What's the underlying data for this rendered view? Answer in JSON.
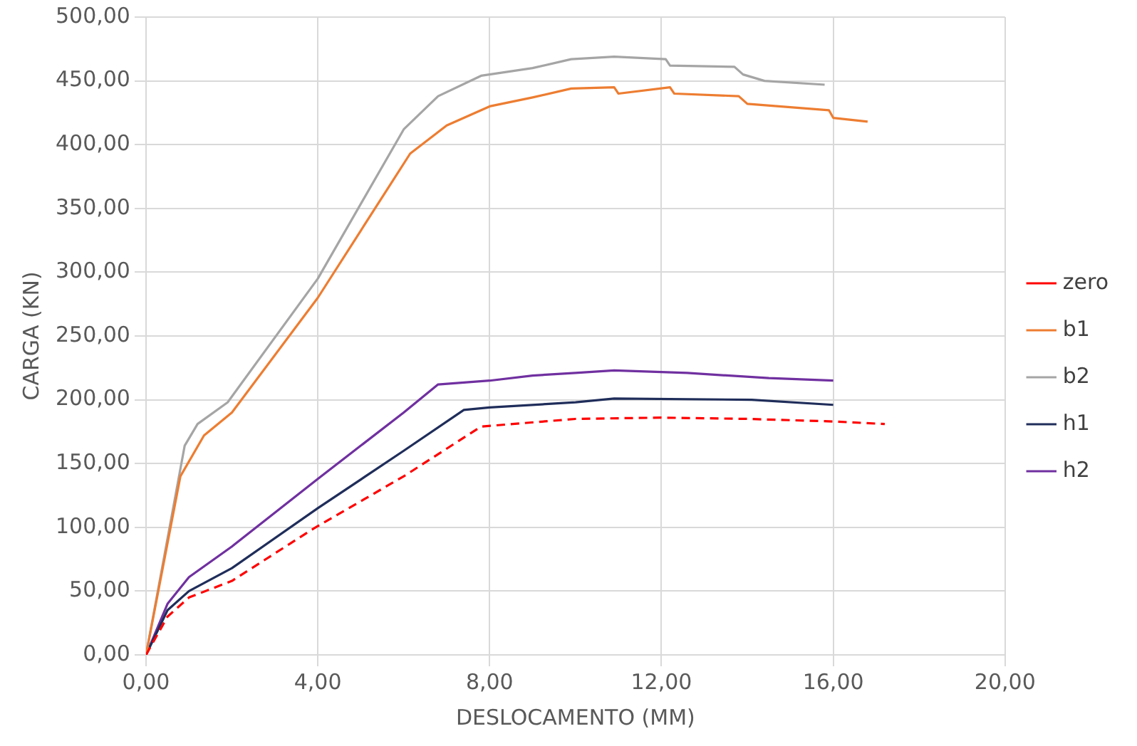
{
  "chart_data": {
    "type": "line",
    "xlabel": "DESLOCAMENTO (MM)",
    "ylabel": "CARGA (KN)",
    "xlim": [
      0,
      20
    ],
    "xticks": [
      {
        "value": 0,
        "label": "0,00"
      },
      {
        "value": 4,
        "label": "4,00"
      },
      {
        "value": 8,
        "label": "8,00"
      },
      {
        "value": 12,
        "label": "12,00"
      },
      {
        "value": 16,
        "label": "16,00"
      },
      {
        "value": 20,
        "label": "20,00"
      }
    ],
    "ylim": [
      0,
      500
    ],
    "yticks": [
      {
        "value": 0,
        "label": "0,00"
      },
      {
        "value": 50,
        "label": "50,00"
      },
      {
        "value": 100,
        "label": "100,00"
      },
      {
        "value": 150,
        "label": "150,00"
      },
      {
        "value": 200,
        "label": "200,00"
      },
      {
        "value": 250,
        "label": "250,00"
      },
      {
        "value": 300,
        "label": "300,00"
      },
      {
        "value": 350,
        "label": "350,00"
      },
      {
        "value": 400,
        "label": "400,00"
      },
      {
        "value": 450,
        "label": "450,00"
      },
      {
        "value": 500,
        "label": "500,00"
      }
    ],
    "grid": true,
    "legend": "right",
    "marker": "none",
    "series": [
      {
        "name": "zero",
        "color": "#ff0000",
        "line_style": "dashed",
        "x": [
          0,
          0.5,
          1,
          2,
          3.9,
          6,
          7.8,
          10,
          12,
          14,
          16,
          17.2
        ],
        "values": [
          0,
          30,
          45,
          58,
          99,
          140,
          179,
          185,
          186,
          185,
          183,
          181
        ]
      },
      {
        "name": "b1",
        "color": "#ed7d31",
        "x": [
          0,
          0.8,
          1.35,
          2,
          4,
          6.15,
          7,
          8,
          9,
          9.9,
          10.9,
          11,
          12.2,
          12.3,
          13.8,
          14,
          15.9,
          16,
          16.8
        ],
        "values": [
          0,
          140,
          172,
          190,
          280,
          393,
          415,
          430,
          437,
          444,
          445,
          440,
          445,
          440,
          438,
          432,
          427,
          421,
          418
        ]
      },
      {
        "name": "b2",
        "color": "#a5a5a5",
        "x": [
          0,
          0.9,
          1.2,
          1.9,
          4,
          6,
          6.8,
          7.8,
          9,
          9.9,
          10.9,
          12.1,
          12.2,
          13.7,
          13.9,
          14.4,
          15.8
        ],
        "values": [
          0,
          164,
          181,
          198,
          295,
          412,
          438,
          454,
          460,
          467,
          469,
          467,
          462,
          461,
          455,
          450,
          447
        ]
      },
      {
        "name": "h1",
        "color": "#1f2d5a",
        "x": [
          0,
          0.5,
          1,
          2,
          4,
          6,
          7.4,
          8,
          10,
          10.9,
          14.1,
          16
        ],
        "values": [
          0,
          35,
          50,
          68,
          115,
          160,
          192,
          194,
          198,
          201,
          200,
          196
        ]
      },
      {
        "name": "h2",
        "color": "#7030a0",
        "x": [
          0,
          0.5,
          1,
          2,
          4,
          6,
          6.8,
          8,
          9,
          10,
          10.9,
          12.6,
          14.5,
          16
        ],
        "values": [
          0,
          40,
          61,
          85,
          138,
          190,
          212,
          215,
          219,
          221,
          223,
          221,
          217,
          215
        ]
      }
    ]
  }
}
